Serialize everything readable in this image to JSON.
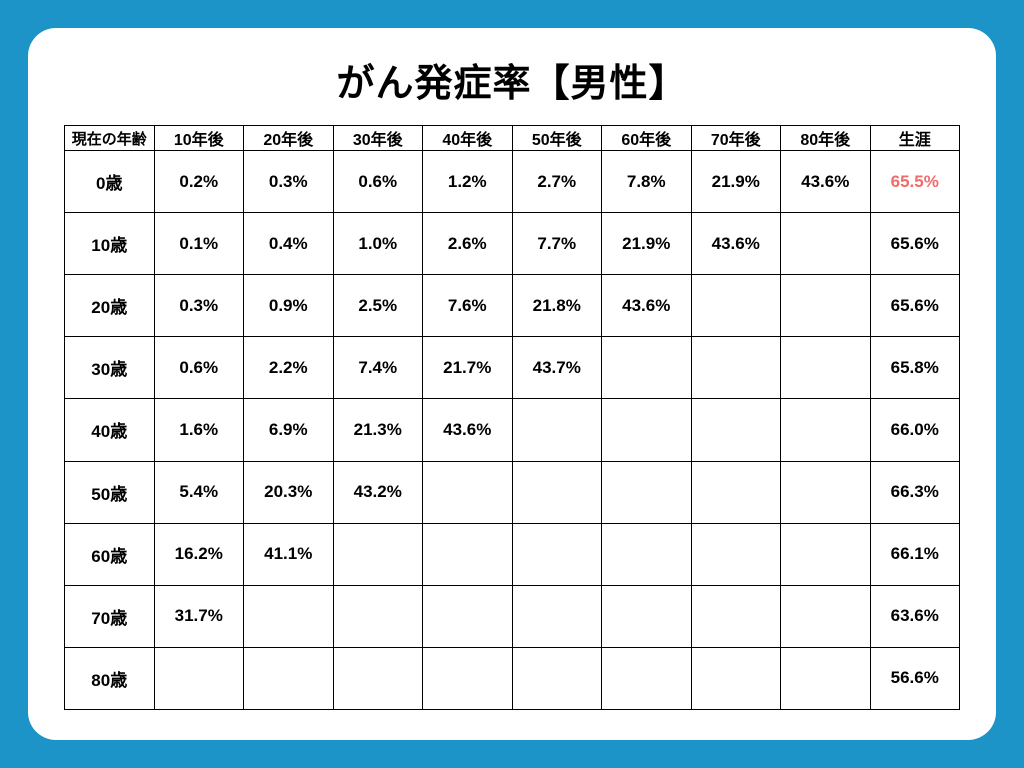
{
  "title": "がん発症率【男性】",
  "colors": {
    "page_bg": "#1c94c8",
    "card_bg": "#ffffff",
    "border": "#000000",
    "text": "#000000",
    "highlight": "#f26b6b"
  },
  "typography": {
    "title_fontsize": 38,
    "cell_fontsize": 17,
    "header_fontsize": 16
  },
  "table": {
    "type": "table",
    "columns": [
      "現在の年齢",
      "10年後",
      "20年後",
      "30年後",
      "40年後",
      "50年後",
      "60年後",
      "70年後",
      "80年後",
      "生涯"
    ],
    "row_labels": [
      "0歳",
      "10歳",
      "20歳",
      "30歳",
      "40歳",
      "50歳",
      "60歳",
      "70歳",
      "80歳"
    ],
    "rows": [
      [
        "0.2%",
        "0.3%",
        "0.6%",
        "1.2%",
        "2.7%",
        "7.8%",
        "21.9%",
        "43.6%",
        "65.5%"
      ],
      [
        "0.1%",
        "0.4%",
        "1.0%",
        "2.6%",
        "7.7%",
        "21.9%",
        "43.6%",
        "",
        "65.6%"
      ],
      [
        "0.3%",
        "0.9%",
        "2.5%",
        "7.6%",
        "21.8%",
        "43.6%",
        "",
        "",
        "65.6%"
      ],
      [
        "0.6%",
        "2.2%",
        "7.4%",
        "21.7%",
        "43.7%",
        "",
        "",
        "",
        "65.8%"
      ],
      [
        "1.6%",
        "6.9%",
        "21.3%",
        "43.6%",
        "",
        "",
        "",
        "",
        "66.0%"
      ],
      [
        "5.4%",
        "20.3%",
        "43.2%",
        "",
        "",
        "",
        "",
        "",
        "66.3%"
      ],
      [
        "16.2%",
        "41.1%",
        "",
        "",
        "",
        "",
        "",
        "",
        "66.1%"
      ],
      [
        "31.7%",
        "",
        "",
        "",
        "",
        "",
        "",
        "",
        "63.6%"
      ],
      [
        "",
        "",
        "",
        "",
        "",
        "",
        "",
        "",
        "56.6%"
      ]
    ],
    "highlight": {
      "row": 0,
      "col": 8
    }
  }
}
